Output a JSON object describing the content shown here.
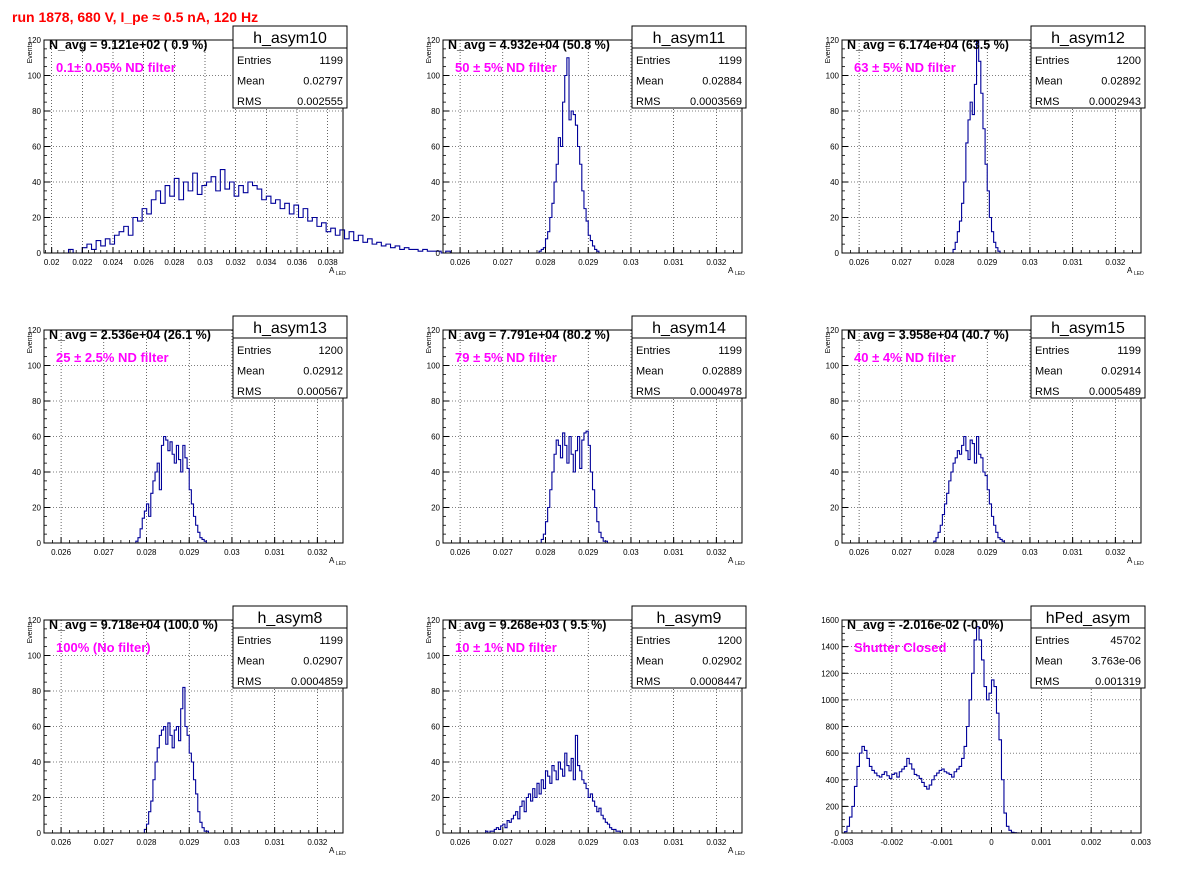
{
  "run_title": "run 1878,   680 V, I_pe ≈ 0.5 nA, 120 Hz",
  "colors": {
    "hist_line": "#000099",
    "grid": "#000000",
    "annotation": "#ff00ff",
    "title": "#ff0000"
  },
  "common": {
    "ylabel": "Events",
    "xlabel_main": "A",
    "xlabel_sub": "LED",
    "stat_labels": [
      "Entries",
      "Mean",
      "RMS"
    ]
  },
  "chart_data": [
    {
      "type": "histogram",
      "name": "h_asym10",
      "navg": "N_avg = 9.121e+02 ( 0.9 %)",
      "note": "0.1± 0.05% ND filter",
      "stats": {
        "entries": "1199",
        "mean": "0.02797",
        "rms": "0.002555"
      },
      "xlim": [
        0.0195,
        0.039
      ],
      "ylim": [
        0,
        120
      ],
      "xticks": [
        0.02,
        0.022,
        0.024,
        0.026,
        0.028,
        0.03,
        0.032,
        0.034,
        0.036,
        0.038
      ],
      "xtick_labels": [
        "0.02",
        "0.022",
        "0.024",
        "0.026",
        "0.028",
        "0.03",
        "0.032",
        "0.034",
        "0.036",
        "0.038"
      ],
      "yticks": [
        0,
        20,
        40,
        60,
        80,
        100,
        120
      ],
      "xlabel": "A LED",
      "ylabel": "Events",
      "bins": {
        "start": 0.0211,
        "width": 0.0003,
        "counts": [
          2,
          0,
          0,
          3,
          5,
          2,
          7,
          4,
          8,
          5,
          10,
          12,
          15,
          10,
          20,
          18,
          25,
          22,
          30,
          35,
          28,
          38,
          32,
          42,
          30,
          40,
          35,
          45,
          33,
          38,
          40,
          43,
          35,
          47,
          36,
          40,
          32,
          38,
          34,
          40,
          38,
          36,
          30,
          32,
          28,
          30,
          25,
          28,
          22,
          27,
          20,
          25,
          18,
          20,
          15,
          17,
          12,
          14,
          10,
          13,
          8,
          12,
          7,
          10,
          6,
          8,
          5,
          6,
          4,
          5,
          3,
          4,
          2,
          3,
          2,
          2,
          1,
          2,
          1,
          1,
          1,
          0,
          1,
          0,
          0
        ]
      }
    },
    {
      "type": "histogram",
      "name": "h_asym11",
      "navg": "N_avg = 4.932e+04 (50.8 %)",
      "note": "50 ± 5% ND filter",
      "stats": {
        "entries": "1199",
        "mean": "0.02884",
        "rms": "0.0003569"
      },
      "xlim": [
        0.0256,
        0.0326
      ],
      "ylim": [
        0,
        120
      ],
      "xticks": [
        0.026,
        0.027,
        0.028,
        0.029,
        0.03,
        0.031,
        0.032
      ],
      "xtick_labels": [
        "0.026",
        "0.027",
        "0.028",
        "0.029",
        "0.03",
        "0.031",
        "0.032"
      ],
      "yticks": [
        0,
        20,
        40,
        60,
        80,
        100,
        120
      ],
      "xlabel": "A LED",
      "ylabel": "Events",
      "bins": {
        "start": 0.02785,
        "width": 5e-05,
        "counts": [
          1,
          2,
          3,
          8,
          12,
          20,
          28,
          40,
          50,
          65,
          60,
          85,
          100,
          110,
          75,
          80,
          78,
          72,
          60,
          50,
          35,
          25,
          18,
          10,
          7,
          4,
          2,
          1
        ]
      }
    },
    {
      "type": "histogram",
      "name": "h_asym12",
      "navg": "N_avg = 6.174e+04 (63.5 %)",
      "note": "63 ± 5% ND filter",
      "stats": {
        "entries": "1200",
        "mean": "0.02892",
        "rms": "0.0002943"
      },
      "xlim": [
        0.0256,
        0.0326
      ],
      "ylim": [
        0,
        120
      ],
      "xticks": [
        0.026,
        0.027,
        0.028,
        0.029,
        0.03,
        0.031,
        0.032
      ],
      "xtick_labels": [
        "0.026",
        "0.027",
        "0.028",
        "0.029",
        "0.03",
        "0.031",
        "0.032"
      ],
      "yticks": [
        0,
        20,
        40,
        60,
        80,
        100,
        120
      ],
      "xlabel": "A LED",
      "ylabel": "Events",
      "bins": {
        "start": 0.0282,
        "width": 5e-05,
        "counts": [
          2,
          6,
          12,
          18,
          28,
          40,
          62,
          75,
          85,
          78,
          95,
          120,
          108,
          90,
          70,
          50,
          35,
          20,
          12,
          6,
          3,
          1
        ]
      }
    },
    {
      "type": "histogram",
      "name": "h_asym13",
      "navg": "N_avg = 2.536e+04 (26.1 %)",
      "note": "25 ± 2.5% ND filter",
      "stats": {
        "entries": "1200",
        "mean": "0.02912",
        "rms": "0.000567"
      },
      "xlim": [
        0.0256,
        0.0326
      ],
      "ylim": [
        0,
        120
      ],
      "xticks": [
        0.026,
        0.027,
        0.028,
        0.029,
        0.03,
        0.031,
        0.032
      ],
      "xtick_labels": [
        "0.026",
        "0.027",
        "0.028",
        "0.029",
        "0.03",
        "0.031",
        "0.032"
      ],
      "yticks": [
        0,
        20,
        40,
        60,
        80,
        100,
        120
      ],
      "xlabel": "A LED",
      "ylabel": "Events",
      "bins": {
        "start": 0.02775,
        "width": 5e-05,
        "counts": [
          1,
          3,
          8,
          14,
          18,
          22,
          15,
          28,
          35,
          40,
          45,
          30,
          55,
          60,
          58,
          52,
          57,
          50,
          45,
          55,
          47,
          40,
          55,
          48,
          42,
          30,
          22,
          15,
          10,
          6,
          3,
          2,
          1
        ]
      }
    },
    {
      "type": "histogram",
      "name": "h_asym14",
      "navg": "N_avg = 7.791e+04 (80.2 %)",
      "note": "79 ± 5% ND filter",
      "stats": {
        "entries": "1199",
        "mean": "0.02889",
        "rms": "0.0004978"
      },
      "xlim": [
        0.0256,
        0.0326
      ],
      "ylim": [
        0,
        120
      ],
      "xticks": [
        0.026,
        0.027,
        0.028,
        0.029,
        0.03,
        0.031,
        0.032
      ],
      "xtick_labels": [
        "0.026",
        "0.027",
        "0.028",
        "0.029",
        "0.03",
        "0.031",
        "0.032"
      ],
      "yticks": [
        0,
        20,
        40,
        60,
        80,
        100,
        120
      ],
      "xlabel": "A LED",
      "ylabel": "Events",
      "bins": {
        "start": 0.0279,
        "width": 5e-05,
        "counts": [
          2,
          5,
          12,
          20,
          30,
          40,
          50,
          58,
          55,
          48,
          62,
          55,
          45,
          60,
          50,
          40,
          52,
          60,
          42,
          58,
          62,
          63,
          55,
          40,
          30,
          20,
          12,
          6,
          3,
          1,
          1
        ]
      }
    },
    {
      "type": "histogram",
      "name": "h_asym15",
      "navg": "N_avg = 3.958e+04 (40.7 %)",
      "note": "40 ± 4% ND filter",
      "stats": {
        "entries": "1199",
        "mean": "0.02914",
        "rms": "0.0005489"
      },
      "xlim": [
        0.0256,
        0.0326
      ],
      "ylim": [
        0,
        120
      ],
      "xticks": [
        0.026,
        0.027,
        0.028,
        0.029,
        0.03,
        0.031,
        0.032
      ],
      "xtick_labels": [
        "0.026",
        "0.027",
        "0.028",
        "0.029",
        "0.03",
        "0.031",
        "0.032"
      ],
      "yticks": [
        0,
        20,
        40,
        60,
        80,
        100,
        120
      ],
      "xlabel": "A LED",
      "ylabel": "Events",
      "bins": {
        "start": 0.02775,
        "width": 5e-05,
        "counts": [
          1,
          3,
          6,
          10,
          16,
          22,
          28,
          35,
          40,
          45,
          48,
          52,
          50,
          55,
          60,
          52,
          47,
          58,
          56,
          45,
          60,
          50,
          48,
          40,
          38,
          30,
          22,
          15,
          10,
          6,
          3,
          2,
          1
        ]
      }
    },
    {
      "type": "histogram",
      "name": "h_asym8",
      "navg": "N_avg = 9.718e+04 (100.0 %)",
      "note": "100% (No filter)",
      "stats": {
        "entries": "1199",
        "mean": "0.02907",
        "rms": "0.0004859"
      },
      "xlim": [
        0.0256,
        0.0326
      ],
      "ylim": [
        0,
        120
      ],
      "xticks": [
        0.026,
        0.027,
        0.028,
        0.029,
        0.03,
        0.031,
        0.032
      ],
      "xtick_labels": [
        "0.026",
        "0.027",
        "0.028",
        "0.029",
        "0.03",
        "0.031",
        "0.032"
      ],
      "yticks": [
        0,
        20,
        40,
        60,
        80,
        100,
        120
      ],
      "xlabel": "A LED",
      "ylabel": "Events",
      "bins": {
        "start": 0.02795,
        "width": 5e-05,
        "counts": [
          2,
          5,
          12,
          18,
          30,
          40,
          48,
          55,
          58,
          60,
          50,
          62,
          55,
          48,
          58,
          60,
          52,
          70,
          82,
          60,
          55,
          45,
          40,
          30,
          22,
          12,
          6,
          3,
          1,
          1
        ]
      }
    },
    {
      "type": "histogram",
      "name": "h_asym9",
      "navg": "N_avg = 9.268e+03 ( 9.5 %)",
      "note": "10 ± 1% ND filter",
      "stats": {
        "entries": "1200",
        "mean": "0.02902",
        "rms": "0.0008447"
      },
      "xlim": [
        0.0256,
        0.0326
      ],
      "ylim": [
        0,
        120
      ],
      "xticks": [
        0.026,
        0.027,
        0.028,
        0.029,
        0.03,
        0.031,
        0.032
      ],
      "xtick_labels": [
        "0.026",
        "0.027",
        "0.028",
        "0.029",
        "0.03",
        "0.031",
        "0.032"
      ],
      "yticks": [
        0,
        20,
        40,
        60,
        80,
        100,
        120
      ],
      "xlabel": "A LED",
      "ylabel": "Events",
      "bins": {
        "start": 0.0266,
        "width": 5e-05,
        "counts": [
          1,
          0,
          1,
          1,
          2,
          3,
          2,
          4,
          5,
          3,
          7,
          6,
          8,
          10,
          12,
          8,
          15,
          18,
          12,
          20,
          22,
          18,
          25,
          20,
          28,
          22,
          30,
          25,
          35,
          32,
          28,
          38,
          35,
          30,
          40,
          36,
          32,
          45,
          38,
          35,
          42,
          30,
          55,
          38,
          35,
          30,
          28,
          25,
          20,
          22,
          18,
          15,
          12,
          14,
          10,
          8,
          6,
          5,
          3,
          2,
          2,
          1,
          1
        ]
      }
    },
    {
      "type": "histogram",
      "name": "hPed_asym",
      "navg": "N_avg = -2.016e-02 (-0.0%)",
      "note": "Shutter Closed",
      "stats": {
        "entries": "45702",
        "mean": "3.763e-06",
        "rms": "0.001319"
      },
      "xlim": [
        -0.003,
        0.003
      ],
      "ylim": [
        0,
        1600
      ],
      "xticks": [
        -0.003,
        -0.002,
        -0.001,
        0,
        0.001,
        0.002,
        0.003
      ],
      "xtick_labels": [
        "-0.003",
        "-0.002",
        "-0.001",
        "0",
        "0.001",
        "0.002",
        "0.003"
      ],
      "yticks": [
        0,
        200,
        400,
        600,
        800,
        1000,
        1200,
        1400,
        1600
      ],
      "xlabel": "",
      "ylabel": "",
      "bins": {
        "start": -0.00295,
        "width": 5e-05,
        "counts": [
          10,
          50,
          120,
          200,
          350,
          500,
          600,
          650,
          620,
          560,
          500,
          470,
          450,
          430,
          420,
          440,
          460,
          430,
          410,
          440,
          450,
          420,
          460,
          480,
          500,
          560,
          520,
          480,
          440,
          430,
          410,
          380,
          350,
          330,
          360,
          400,
          430,
          450,
          470,
          480,
          460,
          450,
          440,
          420,
          460,
          480,
          500,
          560,
          650,
          800,
          1000,
          1200,
          1450,
          1550,
          1450,
          1300,
          1100,
          1000,
          1050,
          1150,
          1100,
          900,
          700,
          400,
          150,
          50,
          20,
          5,
          2,
          1,
          0,
          0,
          0,
          0,
          0,
          0,
          0,
          0,
          0,
          0,
          0,
          0,
          0,
          0,
          0,
          0,
          0,
          0,
          0,
          0,
          0,
          0,
          0,
          0,
          0,
          0,
          0,
          0,
          0,
          0,
          0,
          0,
          0,
          0,
          0,
          0,
          0,
          0,
          0,
          0,
          0
        ]
      }
    }
  ]
}
